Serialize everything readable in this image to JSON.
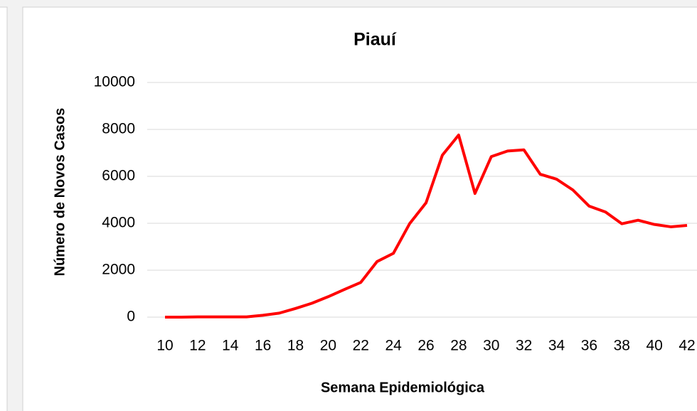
{
  "chart_data": {
    "type": "line",
    "title": "Piauí",
    "x_label": "Semana Epidemiológica",
    "y_label": "Número de Novos Casos",
    "x": [
      10,
      11,
      12,
      13,
      14,
      15,
      16,
      17,
      18,
      19,
      20,
      21,
      22,
      23,
      24,
      25,
      26,
      27,
      28,
      29,
      30,
      31,
      32,
      33,
      34,
      35,
      36,
      37,
      38,
      39,
      40,
      41,
      42
    ],
    "series": [
      {
        "name": "Piauí",
        "color": "#ff0000",
        "values": [
          0,
          0,
          10,
          10,
          10,
          10,
          80,
          170,
          370,
          590,
          870,
          1180,
          1480,
          2370,
          2720,
          3990,
          4870,
          6900,
          7760,
          5270,
          6840,
          7080,
          7130,
          6090,
          5880,
          5420,
          4730,
          4480,
          3980,
          4130,
          3950,
          3850,
          3910
        ]
      }
    ],
    "xlim": [
      10,
      42
    ],
    "xticks": [
      10,
      12,
      14,
      16,
      18,
      20,
      22,
      24,
      26,
      28,
      30,
      32,
      34,
      36,
      38,
      40,
      42
    ],
    "ylim": [
      0,
      10000
    ],
    "yticks": [
      0,
      2000,
      4000,
      6000,
      8000,
      10000
    ],
    "grid": true
  }
}
